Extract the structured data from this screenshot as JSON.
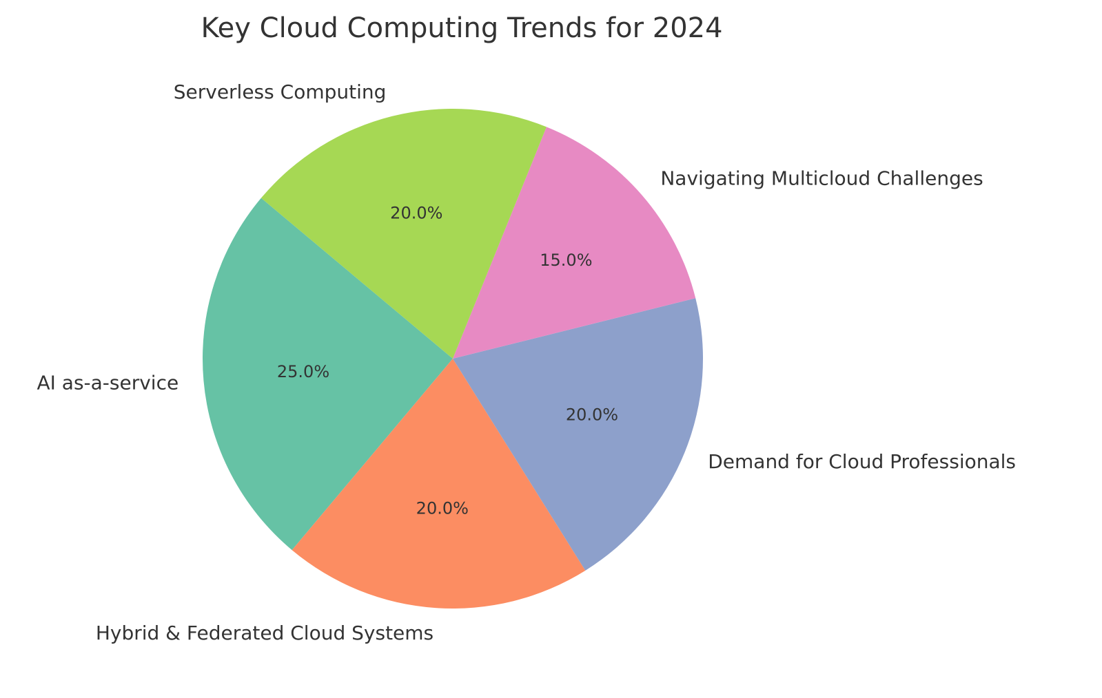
{
  "chart_data": {
    "type": "pie",
    "title": "Key Cloud Computing Trends for 2024",
    "start_angle_deg": 140,
    "direction": "counterclockwise",
    "autopct_format": "1 decimal percent",
    "slices": [
      {
        "label": "AI as-a-service",
        "value": 25.0,
        "pct_label": "25.0%",
        "color": "#66c2a5"
      },
      {
        "label": "Hybrid & Federated Cloud Systems",
        "value": 20.0,
        "pct_label": "20.0%",
        "color": "#fc8d62"
      },
      {
        "label": "Demand for Cloud Professionals",
        "value": 20.0,
        "pct_label": "20.0%",
        "color": "#8da0cb"
      },
      {
        "label": "Navigating Multicloud Challenges",
        "value": 15.0,
        "pct_label": "15.0%",
        "color": "#e78ac3"
      },
      {
        "label": "Serverless Computing",
        "value": 20.0,
        "pct_label": "20.0%",
        "color": "#a6d854"
      }
    ]
  }
}
